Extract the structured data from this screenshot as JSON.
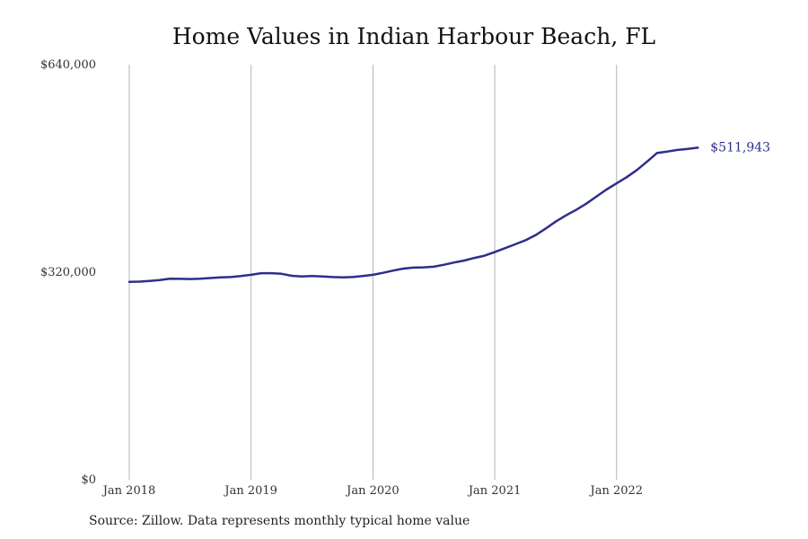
{
  "chart_data": {
    "type": "line",
    "title": "Home Values in Indian Harbour Beach, FL",
    "xlabel": "",
    "ylabel": "",
    "ylim": [
      0,
      640000
    ],
    "y_ticks": [
      {
        "value": 0,
        "label": "$0"
      },
      {
        "value": 320000,
        "label": "$320,000"
      },
      {
        "value": 640000,
        "label": "$640,000"
      }
    ],
    "x_ticks": [
      "Jan 2018",
      "Jan 2019",
      "Jan 2020",
      "Jan 2021",
      "Jan 2022"
    ],
    "vertical_grid": true,
    "horizontal_grid": false,
    "line_color": "#2e2e8a",
    "series": [
      {
        "x": [
          "2018-01",
          "2018-02",
          "2018-03",
          "2018-04",
          "2018-05",
          "2018-06",
          "2018-07",
          "2018-08",
          "2018-09",
          "2018-10",
          "2018-11",
          "2018-12",
          "2019-01",
          "2019-02",
          "2019-03",
          "2019-04",
          "2019-05",
          "2019-06",
          "2019-07",
          "2019-08",
          "2019-09",
          "2019-10",
          "2019-11",
          "2019-12",
          "2020-01",
          "2020-02",
          "2020-03",
          "2020-04",
          "2020-05",
          "2020-06",
          "2020-07",
          "2020-08",
          "2020-09",
          "2020-10",
          "2020-11",
          "2020-12",
          "2021-01",
          "2021-02",
          "2021-03",
          "2021-04",
          "2021-05",
          "2021-06",
          "2021-07",
          "2021-08",
          "2021-09",
          "2021-10",
          "2021-11",
          "2021-12",
          "2022-01",
          "2022-02",
          "2022-03",
          "2022-04",
          "2022-05",
          "2022-06",
          "2022-07",
          "2022-08",
          "2022-09"
        ],
        "values": [
          305000,
          305500,
          306500,
          308000,
          310000,
          309800,
          309500,
          310000,
          311000,
          312000,
          312500,
          314000,
          316000,
          318500,
          318500,
          317500,
          314500,
          313500,
          314000,
          313500,
          312500,
          312000,
          312500,
          314000,
          316000,
          319000,
          322500,
          325500,
          327000,
          327500,
          328500,
          331500,
          335000,
          338000,
          342000,
          345500,
          351000,
          357000,
          363000,
          369000,
          377000,
          387000,
          398000,
          407500,
          416000,
          425500,
          436500,
          447500,
          457000,
          466500,
          477500,
          490500,
          504000,
          506000,
          508500,
          510000,
          511943
        ]
      }
    ],
    "end_label": "$511,943",
    "source": "Source: Zillow. Data represents monthly typical home value"
  }
}
